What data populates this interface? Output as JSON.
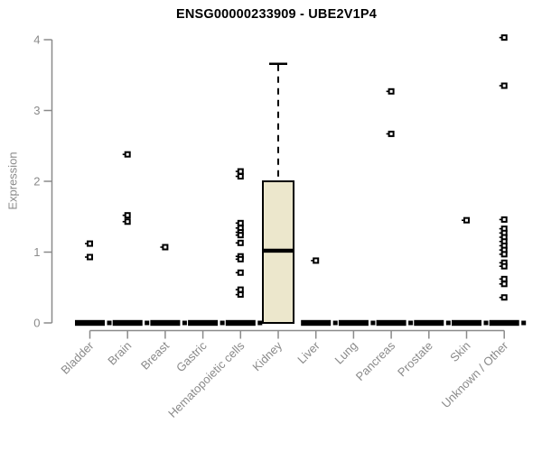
{
  "chart_data": {
    "type": "boxplot",
    "title": "ENSG00000233909 - UBE2V1P4",
    "ylabel": "Expression",
    "xlabel": "",
    "ylim": [
      0,
      4
    ],
    "yticks": [
      0,
      1,
      2,
      3,
      4
    ],
    "grid": false,
    "legend": "none",
    "categories": [
      "Bladder",
      "Brain",
      "Breast",
      "Gastric",
      "Hematopoietic cells",
      "Kidney",
      "Liver",
      "Lung",
      "Pancreas",
      "Prostate",
      "Skin",
      "Unknown / Other"
    ],
    "boxes": [
      {
        "category": "Bladder",
        "q1": 0,
        "median": 0,
        "q3": 0,
        "whisker_low": 0,
        "whisker_high": 0,
        "outliers": [
          1.12,
          0.93
        ]
      },
      {
        "category": "Brain",
        "q1": 0,
        "median": 0,
        "q3": 0,
        "whisker_low": 0,
        "whisker_high": 0,
        "outliers": [
          2.38,
          1.52,
          1.43
        ]
      },
      {
        "category": "Breast",
        "q1": 0,
        "median": 0,
        "q3": 0,
        "whisker_low": 0,
        "whisker_high": 0,
        "outliers": [
          1.07
        ]
      },
      {
        "category": "Gastric",
        "q1": 0,
        "median": 0,
        "q3": 0,
        "whisker_low": 0,
        "whisker_high": 0,
        "outliers": []
      },
      {
        "category": "Hematopoietic cells",
        "q1": 0,
        "median": 0,
        "q3": 0,
        "whisker_low": 0,
        "whisker_high": 0,
        "outliers": [
          2.14,
          2.07,
          1.41,
          1.34,
          1.28,
          1.24,
          1.13,
          0.94,
          0.9,
          0.71,
          0.47,
          0.4
        ]
      },
      {
        "category": "Kidney",
        "q1": 0,
        "median": 1.02,
        "q3": 2.0,
        "whisker_low": 0,
        "whisker_high": 3.66,
        "outliers": []
      },
      {
        "category": "Liver",
        "q1": 0,
        "median": 0,
        "q3": 0,
        "whisker_low": 0,
        "whisker_high": 0,
        "outliers": [
          0.88
        ]
      },
      {
        "category": "Lung",
        "q1": 0,
        "median": 0,
        "q3": 0,
        "whisker_low": 0,
        "whisker_high": 0,
        "outliers": []
      },
      {
        "category": "Pancreas",
        "q1": 0,
        "median": 0,
        "q3": 0,
        "whisker_low": 0,
        "whisker_high": 0,
        "outliers": [
          3.27,
          2.67
        ]
      },
      {
        "category": "Prostate",
        "q1": 0,
        "median": 0,
        "q3": 0,
        "whisker_low": 0,
        "whisker_high": 0,
        "outliers": []
      },
      {
        "category": "Skin",
        "q1": 0,
        "median": 0,
        "q3": 0,
        "whisker_low": 0,
        "whisker_high": 0,
        "outliers": [
          1.45
        ]
      },
      {
        "category": "Unknown / Other",
        "q1": 0,
        "median": 0,
        "q3": 0,
        "whisker_low": 0,
        "whisker_high": 0,
        "outliers": [
          4.03,
          3.35,
          1.46,
          1.33,
          1.27,
          1.21,
          1.15,
          1.09,
          1.03,
          0.97,
          0.85,
          0.8,
          0.62,
          0.55,
          0.36
        ]
      }
    ],
    "colors": {
      "box_fill": "#ECE7CC",
      "ink": "#000000",
      "axis": "#8a8a8a",
      "background": "#ffffff"
    }
  }
}
